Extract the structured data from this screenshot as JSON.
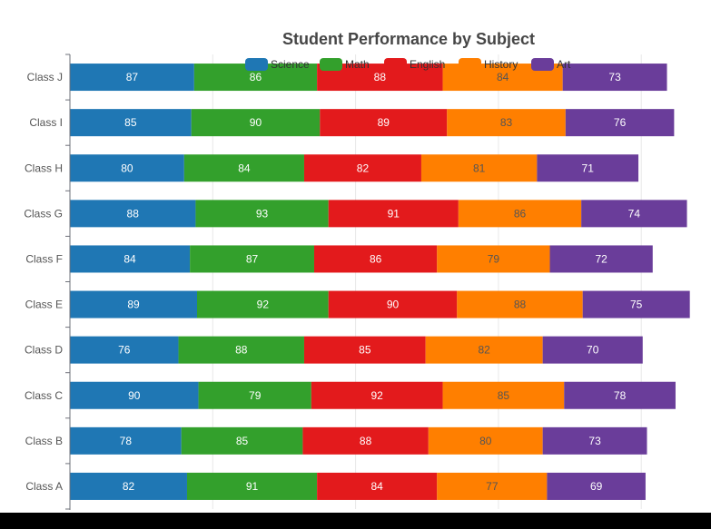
{
  "chart_data": {
    "type": "bar",
    "orientation": "horizontal",
    "stacked": true,
    "title": "Student Performance by Subject",
    "categories": [
      "Class A",
      "Class B",
      "Class C",
      "Class D",
      "Class E",
      "Class F",
      "Class G",
      "Class H",
      "Class I",
      "Class J"
    ],
    "series": [
      {
        "name": "Science",
        "color": "#1f77b4",
        "label_color": "#ffffff",
        "values": [
          82,
          78,
          90,
          76,
          89,
          84,
          88,
          80,
          85,
          87
        ]
      },
      {
        "name": "Math",
        "color": "#33a02c",
        "label_color": "#ffffff",
        "values": [
          91,
          85,
          79,
          88,
          92,
          87,
          93,
          84,
          90,
          86
        ]
      },
      {
        "name": "English",
        "color": "#e31a1c",
        "label_color": "#ffffff",
        "values": [
          84,
          88,
          92,
          85,
          90,
          86,
          91,
          82,
          89,
          88
        ]
      },
      {
        "name": "History",
        "color": "#ff7f00",
        "label_color": "#555555",
        "values": [
          77,
          80,
          85,
          82,
          88,
          79,
          86,
          81,
          83,
          84
        ]
      },
      {
        "name": "Art",
        "color": "#6a3d9a",
        "label_color": "#ffffff",
        "values": [
          69,
          73,
          78,
          70,
          75,
          72,
          74,
          71,
          76,
          73
        ]
      }
    ],
    "xlim": [
      0,
      440
    ],
    "x_grid_step": 100,
    "grid": true,
    "legend_position": "top"
  }
}
